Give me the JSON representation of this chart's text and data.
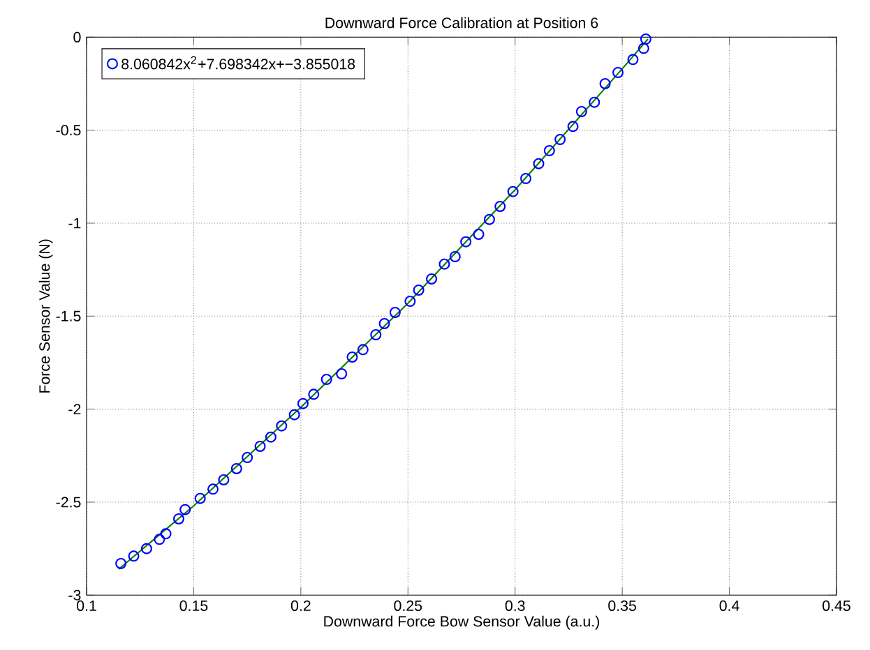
{
  "chart_data": {
    "type": "scatter",
    "title": "Downward Force Calibration at Position 6",
    "xlabel": "Downward Force Bow Sensor Value (a.u.)",
    "ylabel": "Force Sensor Value (N)",
    "xlim": [
      0.1,
      0.45
    ],
    "ylim": [
      -3,
      0
    ],
    "xticks": [
      0.1,
      0.15,
      0.2,
      0.25,
      0.3,
      0.35,
      0.4,
      0.45
    ],
    "yticks": [
      -3,
      -2.5,
      -2,
      -1.5,
      -1,
      -0.5,
      0
    ],
    "grid": true,
    "legend": "top left",
    "series": [
      {
        "name": "8.060842x$^{2}$+7.698342x+−3.855018",
        "marker": "circle",
        "color": "#0000ff",
        "x": [
          0.116,
          0.122,
          0.128,
          0.134,
          0.137,
          0.143,
          0.146,
          0.153,
          0.159,
          0.164,
          0.17,
          0.175,
          0.181,
          0.186,
          0.191,
          0.197,
          0.201,
          0.206,
          0.212,
          0.219,
          0.224,
          0.229,
          0.235,
          0.239,
          0.244,
          0.251,
          0.255,
          0.261,
          0.267,
          0.272,
          0.277,
          0.283,
          0.288,
          0.293,
          0.299,
          0.305,
          0.311,
          0.316,
          0.321,
          0.327,
          0.331,
          0.337,
          0.342,
          0.348,
          0.355,
          0.36,
          0.361
        ],
        "values": [
          -2.83,
          -2.79,
          -2.75,
          -2.7,
          -2.67,
          -2.59,
          -2.54,
          -2.48,
          -2.43,
          -2.38,
          -2.32,
          -2.26,
          -2.2,
          -2.15,
          -2.09,
          -2.03,
          -1.97,
          -1.92,
          -1.84,
          -1.81,
          -1.72,
          -1.68,
          -1.6,
          -1.54,
          -1.48,
          -1.42,
          -1.36,
          -1.3,
          -1.22,
          -1.18,
          -1.1,
          -1.06,
          -0.98,
          -0.91,
          -0.83,
          -0.76,
          -0.68,
          -0.61,
          -0.55,
          -0.48,
          -0.4,
          -0.35,
          -0.25,
          -0.19,
          -0.12,
          -0.06,
          -0.01
        ]
      },
      {
        "type": "line",
        "marker": "none",
        "color": "#008000",
        "x": [
          0.115,
          0.15,
          0.2,
          0.25,
          0.3,
          0.35,
          0.362
        ],
        "values": [
          -2.86,
          -2.52,
          -1.99,
          -1.43,
          -0.82,
          -0.17,
          -0.01
        ]
      }
    ]
  }
}
